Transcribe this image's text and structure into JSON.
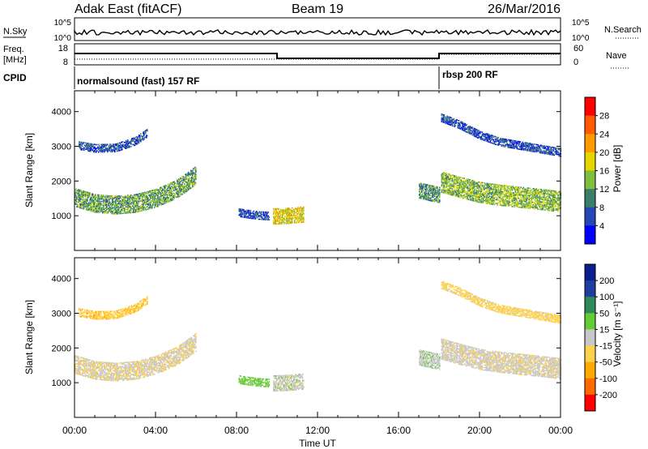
{
  "header": {
    "station": "Adak East (fitACF)",
    "beam": "Beam 19",
    "date": "26/Mar/2016"
  },
  "sky_panel": {
    "left_label": "N.Sky",
    "right_label": "N.Search",
    "left_ticks": [
      "10^5",
      "10^0"
    ],
    "right_ticks": [
      "10^5",
      "10^0"
    ]
  },
  "freq_panel": {
    "left_label_1": "Freq.",
    "left_label_2": "[MHz]",
    "right_label": "Nave",
    "left_ticks": [
      "18",
      "8"
    ],
    "right_ticks": [
      "60",
      "0"
    ]
  },
  "cpid_panel": {
    "label": "CPID",
    "modes": [
      {
        "label": "normalsound (fast) 157 RF",
        "start_hour": 0
      },
      {
        "label": "rbsp 200 RF",
        "start_hour": 18
      }
    ]
  },
  "colors": {
    "power_scale": [
      "#0000ff",
      "#2747b8",
      "#3b7f6a",
      "#7fbf3f",
      "#e5d600",
      "#ff9a00",
      "#ff5a00",
      "#ff0000"
    ],
    "velocity_scale": [
      "#ff0000",
      "#ff6a00",
      "#ffaa00",
      "#ffd24a",
      "#c8c8c8",
      "#66cc33",
      "#2e8b57",
      "#1e3fa0",
      "#0a1f8f"
    ]
  },
  "chart_data": [
    {
      "type": "heatmap",
      "panel": "power",
      "ylabel": "Slant Range [km]",
      "xlabel": "Time UT",
      "xlim": [
        0,
        24
      ],
      "ylim": [
        0,
        4600
      ],
      "x_ticks": [
        "00:00",
        "04:00",
        "08:00",
        "12:00",
        "16:00",
        "20:00",
        "00:00"
      ],
      "y_ticks": [
        1000,
        2000,
        3000,
        4000
      ],
      "colorbar_label": "Power [dB]",
      "colorbar_ticks": [
        4,
        8,
        12,
        16,
        20,
        24,
        28
      ],
      "colorbar_range": [
        0,
        32
      ],
      "bands": [
        {
          "name": "",
          "t": [
            0.0,
            1.0,
            2.0,
            3.0,
            4.0,
            5.0,
            5.5,
            6.0
          ],
          "range_km": [
            1550,
            1380,
            1330,
            1380,
            1530,
            1780,
            1980,
            2200
          ],
          "width_km": 260,
          "power_db": 12
        },
        {
          "name": "",
          "t": [
            0.2,
            1.0,
            2.0,
            3.0,
            3.6
          ],
          "range_km": [
            3050,
            2970,
            2980,
            3180,
            3420
          ],
          "width_km": 120,
          "power_db": 7
        },
        {
          "name": "",
          "t": [
            8.1,
            8.5,
            9.0,
            9.6
          ],
          "range_km": [
            1120,
            1080,
            1040,
            1020
          ],
          "width_km": 120,
          "power_db": 7
        },
        {
          "name": "",
          "t": [
            9.8,
            10.3,
            10.8,
            11.3
          ],
          "range_km": [
            1000,
            1010,
            1030,
            1060
          ],
          "width_km": 220,
          "power_db": 18
        },
        {
          "name": "",
          "t": [
            17.0,
            17.5,
            18.0
          ],
          "range_km": [
            1750,
            1680,
            1620
          ],
          "width_km": 220,
          "power_db": 11
        },
        {
          "name": "",
          "t": [
            18.1,
            19.0,
            20.0,
            21.0,
            22.0,
            23.0,
            24.0
          ],
          "range_km": [
            2000,
            1850,
            1700,
            1620,
            1560,
            1500,
            1430
          ],
          "width_km": 300,
          "power_db": 14
        },
        {
          "name": "",
          "t": [
            18.1,
            19.0,
            20.0,
            21.0,
            22.0,
            23.0,
            24.0
          ],
          "range_km": [
            3850,
            3650,
            3350,
            3150,
            3050,
            2950,
            2850
          ],
          "width_km": 120,
          "power_db": 6
        }
      ]
    },
    {
      "type": "heatmap",
      "panel": "velocity",
      "ylabel": "Slant Range [km]",
      "xlabel": "Time UT",
      "xlim": [
        0,
        24
      ],
      "ylim": [
        0,
        4600
      ],
      "x_ticks": [
        "00:00",
        "04:00",
        "08:00",
        "12:00",
        "16:00",
        "20:00",
        "00:00"
      ],
      "y_ticks": [
        1000,
        2000,
        3000,
        4000
      ],
      "colorbar_label": "Velocity [m s⁻¹]",
      "colorbar_ticks": [
        200,
        100,
        50,
        15,
        -15,
        -50,
        -100,
        -200
      ],
      "bands": [
        {
          "name": "",
          "t": [
            0.0,
            1.0,
            2.0,
            3.0,
            4.0,
            5.0,
            5.5,
            6.0
          ],
          "range_km": [
            1550,
            1380,
            1330,
            1380,
            1530,
            1780,
            1980,
            2200
          ],
          "width_km": 260,
          "velocity": -10
        },
        {
          "name": "",
          "t": [
            0.2,
            1.0,
            2.0,
            3.0,
            3.6
          ],
          "range_km": [
            3050,
            2970,
            2980,
            3180,
            3420
          ],
          "width_km": 120,
          "velocity": -40
        },
        {
          "name": "",
          "t": [
            8.1,
            8.5,
            9.0,
            9.6
          ],
          "range_km": [
            1120,
            1080,
            1040,
            1020
          ],
          "width_km": 120,
          "velocity": 30
        },
        {
          "name": "",
          "t": [
            9.8,
            10.3,
            10.8,
            11.3
          ],
          "range_km": [
            1000,
            1010,
            1030,
            1060
          ],
          "width_km": 220,
          "velocity": 0
        },
        {
          "name": "",
          "t": [
            17.0,
            17.5,
            18.0
          ],
          "range_km": [
            1750,
            1680,
            1620
          ],
          "width_km": 220,
          "velocity": 5
        },
        {
          "name": "",
          "t": [
            18.1,
            19.0,
            20.0,
            21.0,
            22.0,
            23.0,
            24.0
          ],
          "range_km": [
            2000,
            1850,
            1700,
            1620,
            1560,
            1500,
            1430
          ],
          "width_km": 300,
          "velocity": -5
        },
        {
          "name": "",
          "t": [
            18.1,
            19.0,
            20.0,
            21.0,
            22.0,
            23.0,
            24.0
          ],
          "range_km": [
            3850,
            3650,
            3350,
            3150,
            3050,
            2950,
            2850
          ],
          "width_km": 120,
          "velocity": -30
        }
      ]
    }
  ]
}
